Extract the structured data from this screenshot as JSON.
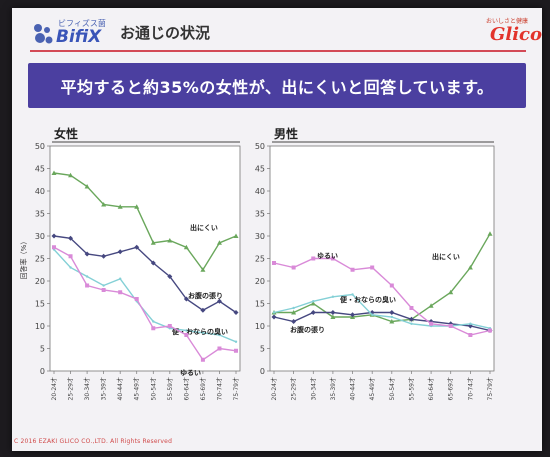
{
  "header": {
    "logo_top": "ビフィズス菌",
    "logo_main": "BifiX",
    "title": "お通じの状況",
    "brand_tagline": "おいしさと健康",
    "brand": "Glico"
  },
  "banner": {
    "text": "平均すると約35%の女性が、出にくいと回答しています。"
  },
  "footer": {
    "text": "C 2016 EZAKI GLICO CO.,LTD.   All Rights Reserved"
  },
  "colors": {
    "green": "#6aa75c",
    "navy": "#464880",
    "pink": "#d98ad8",
    "cyan": "#84d0d6",
    "banner": "#4b3fa0",
    "brand_red": "#e2332b"
  },
  "chart_data": [
    {
      "type": "line",
      "title": "女性",
      "ylabel": "回答率（%）",
      "ylim": [
        0,
        50
      ],
      "yticks": [
        0,
        5,
        10,
        15,
        20,
        25,
        30,
        35,
        40,
        45,
        50
      ],
      "categories": [
        "20-24才",
        "25-29才",
        "30-34才",
        "35-39才",
        "40-44才",
        "45-49才",
        "50-54才",
        "55-59才",
        "60-64才",
        "65-69才",
        "70-74才",
        "75-79才"
      ],
      "series": [
        {
          "name": "出にくい",
          "color": "#6aa75c",
          "values": [
            44,
            43.5,
            41,
            37,
            36.5,
            36.5,
            28.5,
            29,
            27.5,
            22.5,
            28.5,
            30
          ]
        },
        {
          "name": "お腹の張り",
          "color": "#464880",
          "values": [
            30,
            29.5,
            26,
            25.5,
            26.5,
            27.5,
            24,
            21,
            16,
            13.5,
            15.5,
            13
          ]
        },
        {
          "name": "便・おならの臭い",
          "color": "#84d0d6",
          "values": [
            27,
            23,
            21,
            19,
            20.5,
            15.5,
            11,
            9.5,
            9,
            8.5,
            8,
            6.5
          ]
        },
        {
          "name": "ゆるい",
          "color": "#d98ad8",
          "values": [
            27.5,
            25.5,
            19,
            18,
            17.5,
            16,
            9.5,
            10,
            8,
            2.5,
            5,
            4.5
          ]
        }
      ]
    },
    {
      "type": "line",
      "title": "男性",
      "ylim": [
        0,
        50
      ],
      "yticks": [
        0,
        5,
        10,
        15,
        20,
        25,
        30,
        35,
        40,
        45,
        50
      ],
      "categories": [
        "20-24才",
        "25-29才",
        "30-34才",
        "35-39才",
        "40-44才",
        "45-49才",
        "50-54才",
        "55-59才",
        "60-64才",
        "65-69才",
        "70-74才",
        "75-79才"
      ],
      "series": [
        {
          "name": "出にくい",
          "color": "#6aa75c",
          "values": [
            13,
            13,
            15,
            12,
            12,
            12.5,
            11,
            11.5,
            14.5,
            17.5,
            23,
            30.5
          ]
        },
        {
          "name": "お腹の張り",
          "color": "#464880",
          "values": [
            12,
            11,
            13,
            13,
            12.5,
            13,
            13,
            11.5,
            11,
            10.5,
            10,
            9
          ]
        },
        {
          "name": "便・おならの臭い",
          "color": "#84d0d6",
          "values": [
            13,
            14,
            15.5,
            16.5,
            17,
            12.5,
            12,
            10.5,
            10,
            10,
            10.5,
            9.5
          ]
        },
        {
          "name": "ゆるい",
          "color": "#d98ad8",
          "values": [
            24,
            23,
            25,
            25,
            22.5,
            23,
            19,
            14,
            10.5,
            10,
            8,
            9
          ]
        }
      ]
    }
  ]
}
